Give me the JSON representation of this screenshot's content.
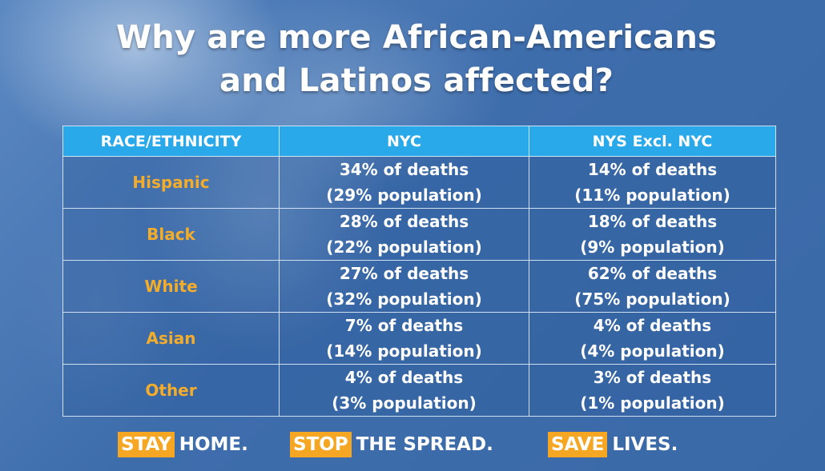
{
  "title": {
    "line1": "Why are more African-Americans",
    "line2": "and Latinos affected?"
  },
  "table": {
    "headers": [
      "RACE/ETHNICITY",
      "NYC",
      "NYS Excl. NYC"
    ],
    "rows": [
      {
        "group": "Hispanic",
        "nyc_deaths": "34% of deaths",
        "nyc_population": "(29% population)",
        "nys_deaths": "14% of deaths",
        "nys_population": "(11% population)"
      },
      {
        "group": "Black",
        "nyc_deaths": "28% of deaths",
        "nyc_population": "(22% population)",
        "nys_deaths": "18% of deaths",
        "nys_population": "(9% population)"
      },
      {
        "group": "White",
        "nyc_deaths": "27% of deaths",
        "nyc_population": "(32% population)",
        "nys_deaths": "62% of deaths",
        "nys_population": "(75% population)"
      },
      {
        "group": "Asian",
        "nyc_deaths": "7% of deaths",
        "nyc_population": "(14% population)",
        "nys_deaths": "4% of deaths",
        "nys_population": "(4% population)"
      },
      {
        "group": "Other",
        "nyc_deaths": "4% of deaths",
        "nyc_population": "(3% population)",
        "nys_deaths": "3% of deaths",
        "nys_population": "(1% population)"
      }
    ]
  },
  "footer": {
    "slogans": [
      {
        "highlight": "STAY",
        "rest": "HOME."
      },
      {
        "highlight": "STOP",
        "rest": "THE SPREAD."
      },
      {
        "highlight": "SAVE",
        "rest": "LIVES."
      }
    ]
  },
  "colors": {
    "background": "#3f6fae",
    "header": "#29a9ea",
    "label": "#f3ad2b",
    "highlight": "#f5a623",
    "text": "#ffffff"
  }
}
